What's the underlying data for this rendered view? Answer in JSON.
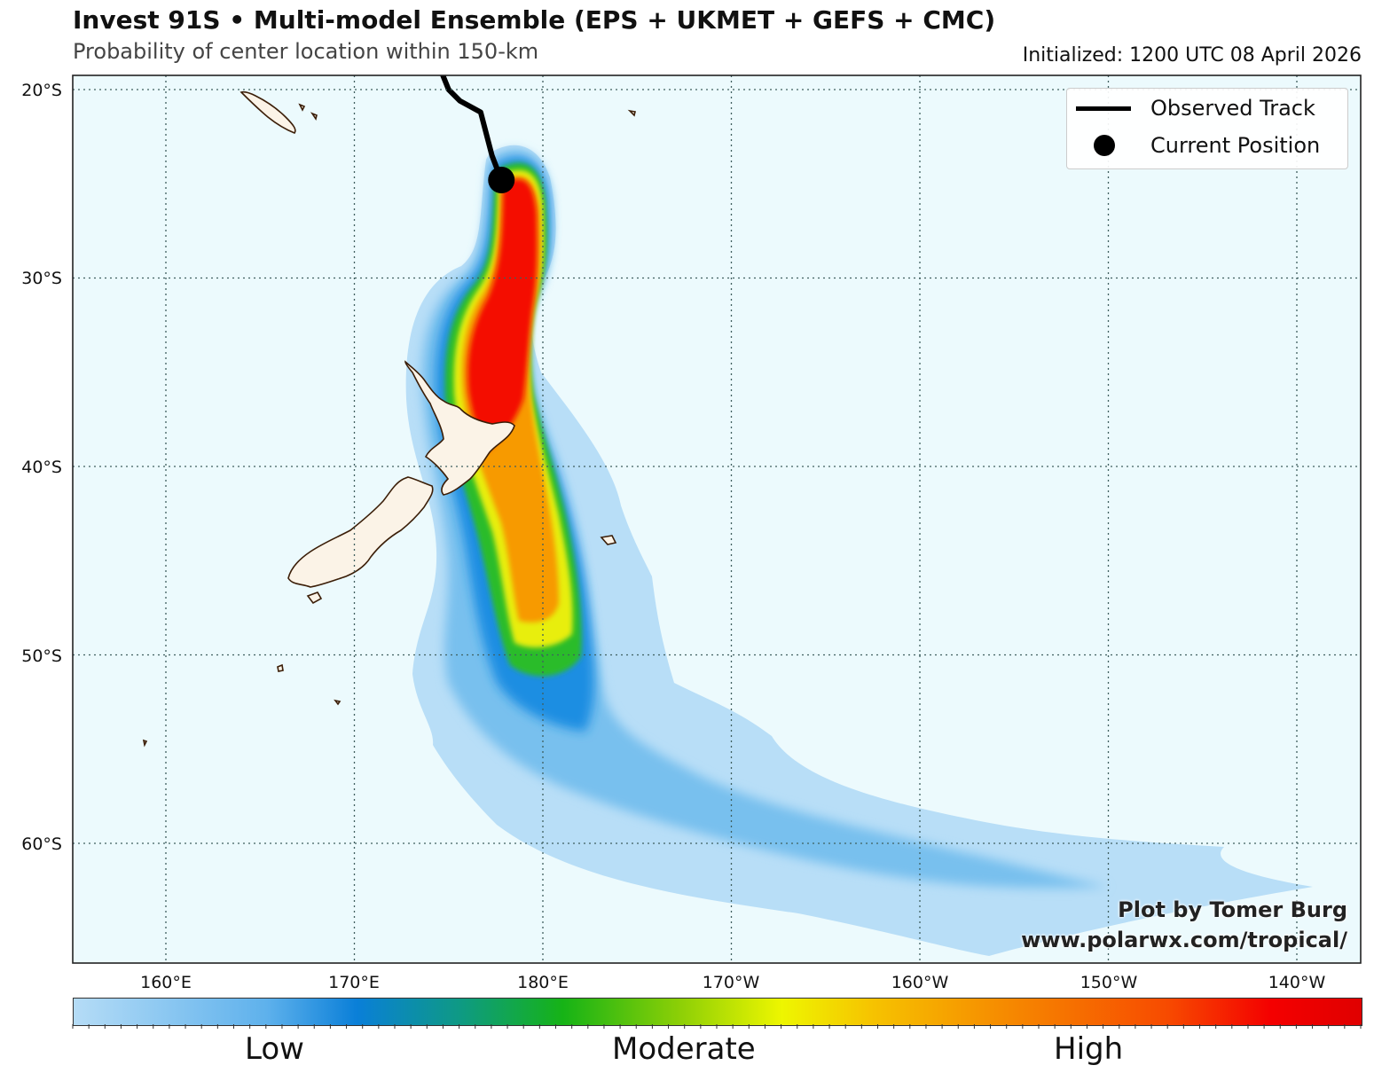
{
  "header": {
    "title": "Invest 91S • Multi-model Ensemble (EPS + UKMET + GEFS + CMC)",
    "subtitle": "Probability of center location within 150-km",
    "initialized": "Initialized: 1200 UTC 08 April 2026"
  },
  "map": {
    "lat_labels": [
      "20°S",
      "30°S",
      "40°S",
      "50°S",
      "60°S"
    ],
    "lon_labels": [
      "160°E",
      "170°E",
      "180°E",
      "170°W",
      "160°W",
      "150°W",
      "140°W"
    ],
    "ocean_color": "#ecfafd",
    "land_color": "#fbf3e7",
    "coast_color": "#3b1e08",
    "observed_track": [
      [
        -20.0,
        175.0
      ],
      [
        -20.6,
        175.6
      ],
      [
        -21.2,
        176.7
      ],
      [
        -23.5,
        177.3
      ],
      [
        -24.8,
        177.8
      ]
    ],
    "current_position": {
      "lat": -24.8,
      "lon": 177.8
    }
  },
  "legend": {
    "observed_track": "Observed Track",
    "current_position": "Current Position"
  },
  "credit": {
    "line1": "Plot by Tomer Burg",
    "line2": "www.polarwx.com/tropical/"
  },
  "colorbar": {
    "low": "Low",
    "moderate": "Moderate",
    "high": "High",
    "colors": [
      "#b5dcf6",
      "#5eb1ec",
      "#0a7fd8",
      "#0e9a84",
      "#16b316",
      "#8ccf06",
      "#eef600",
      "#f6c300",
      "#f68c00",
      "#f74a00",
      "#f40000",
      "#e00000"
    ]
  }
}
